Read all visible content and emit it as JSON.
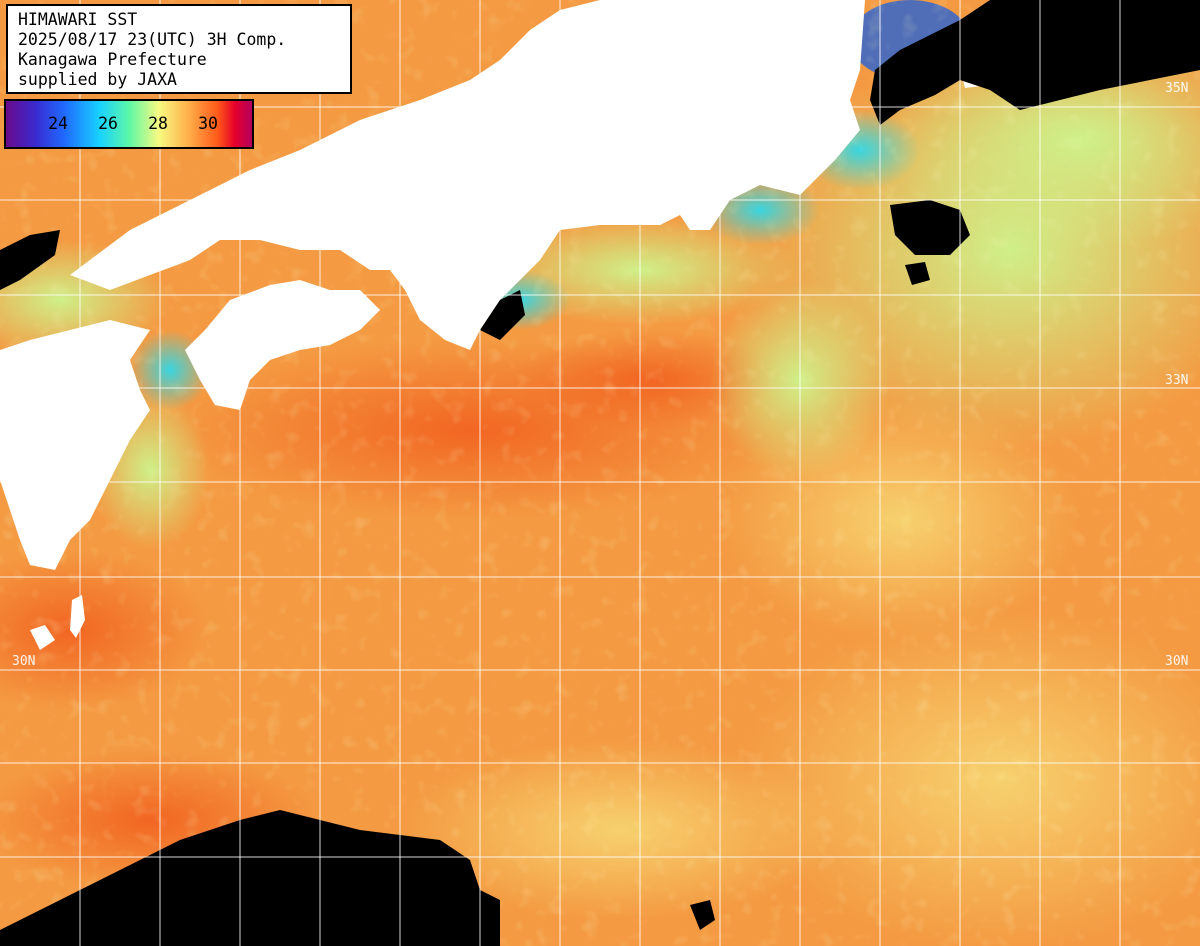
{
  "info": {
    "title": "HIMAWARI SST",
    "datetime": "2025/08/17 23(UTC) 3H Comp.",
    "prefecture": "Kanagawa Prefecture",
    "supplier": "supplied by JAXA"
  },
  "colorbar": {
    "ticks": [
      "24",
      "26",
      "28",
      "30"
    ],
    "colors": [
      "#6a0a8a",
      "#3a2ad0",
      "#1f6cff",
      "#18d2ff",
      "#5cf7a6",
      "#f6fb82",
      "#ffb04a",
      "#ff5a1a",
      "#e6002a",
      "#b4005e"
    ]
  },
  "grid": {
    "lat_labels": [
      {
        "text": "35N",
        "side": "right"
      },
      {
        "text": "33N",
        "side": "right"
      },
      {
        "text": "30N",
        "side": "left"
      },
      {
        "text": "30N",
        "side": "right"
      }
    ]
  },
  "colors": {
    "land": "#ffffff",
    "cloud": "#000000",
    "grid": "#ffffff",
    "warm_sea": "#f49a42",
    "hot_sea": "#f26a28",
    "cool_sea": "#c8f58a",
    "cold_sea": "#4ee0d6"
  }
}
